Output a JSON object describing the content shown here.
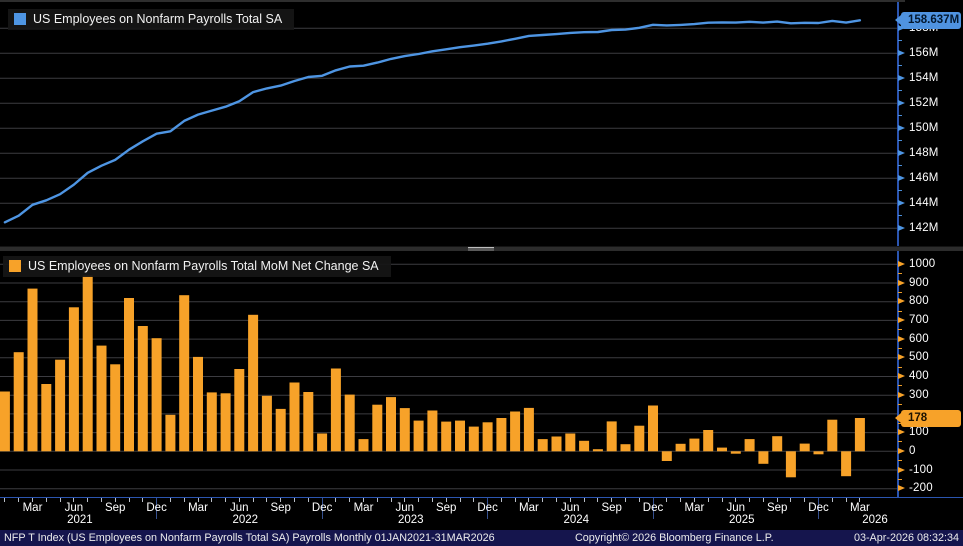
{
  "top_chart": {
    "legend_label": "US Employees on Nonfarm Payrolls Total SA",
    "last_value_badge": "158.637M",
    "y_tick_labels": [
      "158M",
      "156M",
      "154M",
      "152M",
      "150M",
      "148M",
      "146M",
      "144M",
      "142M"
    ]
  },
  "bottom_chart": {
    "legend_label": "US Employees on Nonfarm Payrolls Total MoM Net Change SA",
    "last_value_badge": "178",
    "y_tick_labels": [
      "1000",
      "900",
      "800",
      "700",
      "600",
      "500",
      "400",
      "300",
      "100",
      "0",
      "-100",
      "-200"
    ]
  },
  "x_axis": {
    "quarter_labels": [
      "Mar",
      "Jun",
      "Sep",
      "Dec"
    ],
    "year_labels": [
      "2021",
      "2022",
      "2023",
      "2024",
      "2025",
      "2026"
    ]
  },
  "footer": {
    "left": "NFP T Index (US Employees on Nonfarm Payrolls Total SA) Payrolls Monthly 01JAN2021-31MAR2026",
    "center": "Copyright© 2026 Bloomberg Finance L.P.",
    "right": "03-Apr-2026 08:32:34"
  },
  "colors": {
    "line_blue": "#4e95e3",
    "bar_orange": "#f7a229",
    "grid": "#3c3c41",
    "axis_blue": "#2b55b0",
    "tick_blue": "#4e95e3",
    "tick_orange": "#f7a229"
  },
  "chart_data": [
    {
      "type": "line",
      "title": "US Employees on Nonfarm Payrolls Total SA",
      "unit": "millions of employees",
      "legend_position": "top-left",
      "grid": true,
      "ylim": [
        141.4,
        159.2
      ],
      "y_ticks": [
        142,
        144,
        146,
        148,
        150,
        152,
        154,
        156,
        158
      ],
      "last_value": 158.637,
      "x_months": [
        "Jan 2021",
        "Feb 2021",
        "Mar 2021",
        "Apr 2021",
        "May 2021",
        "Jun 2021",
        "Jul 2021",
        "Aug 2021",
        "Sep 2021",
        "Oct 2021",
        "Nov 2021",
        "Dec 2021",
        "Jan 2022",
        "Feb 2022",
        "Mar 2022",
        "Apr 2022",
        "May 2022",
        "Jun 2022",
        "Jul 2022",
        "Aug 2022",
        "Sep 2022",
        "Oct 2022",
        "Nov 2022",
        "Dec 2022",
        "Jan 2023",
        "Feb 2023",
        "Mar 2023",
        "Apr 2023",
        "May 2023",
        "Jun 2023",
        "Jul 2023",
        "Aug 2023",
        "Sep 2023",
        "Oct 2023",
        "Nov 2023",
        "Dec 2023",
        "Jan 2024",
        "Feb 2024",
        "Mar 2024",
        "Apr 2024",
        "May 2024",
        "Jun 2024",
        "Jul 2024",
        "Aug 2024",
        "Sep 2024",
        "Oct 2024",
        "Nov 2024",
        "Dec 2024",
        "Jan 2025",
        "Feb 2025",
        "Mar 2025",
        "Apr 2025",
        "May 2025",
        "Jun 2025",
        "Jul 2025",
        "Aug 2025",
        "Sep 2025",
        "Oct 2025",
        "Nov 2025",
        "Dec 2025",
        "Jan 2026",
        "Feb 2026",
        "Mar 2026"
      ],
      "values": [
        142.48,
        143.01,
        143.88,
        144.24,
        144.73,
        145.5,
        146.44,
        147.005,
        147.47,
        148.29,
        148.96,
        149.565,
        149.76,
        150.595,
        151.1,
        151.415,
        151.725,
        152.165,
        152.895,
        153.192,
        153.419,
        153.787,
        154.104,
        154.199,
        154.642,
        154.945,
        155.01,
        155.259,
        155.549,
        155.78,
        155.944,
        156.162,
        156.321,
        156.485,
        156.617,
        156.772,
        156.95,
        157.163,
        157.395,
        157.46,
        157.539,
        157.634,
        157.69,
        157.701,
        157.861,
        157.899,
        158.036,
        158.281,
        158.229,
        158.269,
        158.337,
        158.451,
        158.471,
        158.458,
        158.523,
        158.456,
        158.537,
        158.398,
        158.439,
        158.423,
        158.592,
        158.459,
        158.637
      ]
    },
    {
      "type": "bar",
      "title": "US Employees on Nonfarm Payrolls Total MoM Net Change SA",
      "unit": "thousands of employees",
      "legend_position": "top-left",
      "grid": true,
      "ylim": [
        -270,
        1075
      ],
      "y_ticks": [
        -200,
        -100,
        0,
        100,
        200,
        300,
        400,
        500,
        600,
        700,
        800,
        900,
        1000
      ],
      "last_value": 178,
      "x_months": [
        "Jan 2021",
        "Feb 2021",
        "Mar 2021",
        "Apr 2021",
        "May 2021",
        "Jun 2021",
        "Jul 2021",
        "Aug 2021",
        "Sep 2021",
        "Oct 2021",
        "Nov 2021",
        "Dec 2021",
        "Jan 2022",
        "Feb 2022",
        "Mar 2022",
        "Apr 2022",
        "May 2022",
        "Jun 2022",
        "Jul 2022",
        "Aug 2022",
        "Sep 2022",
        "Oct 2022",
        "Nov 2022",
        "Dec 2022",
        "Jan 2023",
        "Feb 2023",
        "Mar 2023",
        "Apr 2023",
        "May 2023",
        "Jun 2023",
        "Jul 2023",
        "Aug 2023",
        "Sep 2023",
        "Oct 2023",
        "Nov 2023",
        "Dec 2023",
        "Jan 2024",
        "Feb 2024",
        "Mar 2024",
        "Apr 2024",
        "May 2024",
        "Jun 2024",
        "Jul 2024",
        "Aug 2024",
        "Sep 2024",
        "Oct 2024",
        "Nov 2024",
        "Dec 2024",
        "Jan 2025",
        "Feb 2025",
        "Mar 2025",
        "Apr 2025",
        "May 2025",
        "Jun 2025",
        "Jul 2025",
        "Aug 2025",
        "Sep 2025",
        "Oct 2025",
        "Nov 2025",
        "Dec 2025",
        "Jan 2026",
        "Feb 2026",
        "Mar 2026"
      ],
      "values": [
        320,
        530,
        870,
        360,
        490,
        770,
        940,
        565,
        465,
        820,
        670,
        605,
        195,
        835,
        505,
        315,
        310,
        440,
        730,
        297,
        227,
        368,
        317,
        95,
        443,
        303,
        65,
        249,
        290,
        231,
        164,
        218,
        159,
        164,
        132,
        155,
        178,
        213,
        232,
        65,
        79,
        95,
        56,
        11,
        160,
        38,
        137,
        245,
        -52,
        40,
        68,
        114,
        20,
        -13,
        65,
        -67,
        81,
        -139,
        41,
        -16,
        169,
        -133,
        178
      ]
    }
  ]
}
